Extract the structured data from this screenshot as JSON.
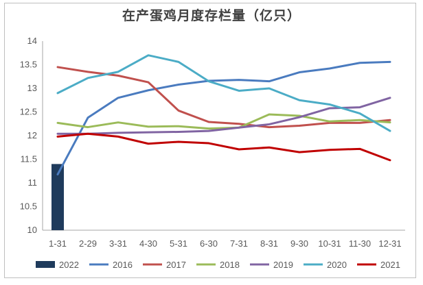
{
  "chart_data": {
    "type": "line",
    "title": "在产蛋鸡月度存栏量（亿只）",
    "categories": [
      "1-31",
      "2-29",
      "3-31",
      "4-30",
      "5-31",
      "6-30",
      "7-31",
      "8-31",
      "9-30",
      "10-31",
      "11-30",
      "12-31"
    ],
    "ylim": [
      10,
      14
    ],
    "yticks": [
      "10",
      "10.5",
      "11",
      "11.5",
      "12",
      "12.5",
      "13",
      "13.5",
      "14"
    ],
    "grid": false,
    "legend_position": "bottom",
    "bar_series": {
      "name": "2022",
      "color": "#1f3b5c",
      "values": [
        11.4,
        null,
        null,
        null,
        null,
        null,
        null,
        null,
        null,
        null,
        null,
        null
      ]
    },
    "series": [
      {
        "name": "2016",
        "color": "#4a7bbf",
        "values": [
          11.18,
          12.38,
          12.8,
          12.96,
          13.08,
          13.16,
          13.18,
          13.15,
          13.34,
          13.42,
          13.54,
          13.56
        ]
      },
      {
        "name": "2017",
        "color": "#c0504d",
        "values": [
          13.45,
          13.35,
          13.27,
          13.13,
          12.53,
          12.29,
          12.25,
          12.18,
          12.21,
          12.27,
          12.27,
          12.33
        ]
      },
      {
        "name": "2018",
        "color": "#9bbb59",
        "values": [
          12.27,
          12.18,
          12.28,
          12.19,
          12.2,
          12.15,
          12.17,
          12.45,
          12.42,
          12.3,
          12.33,
          12.28
        ]
      },
      {
        "name": "2019",
        "color": "#8064a2",
        "values": [
          12.04,
          12.04,
          12.06,
          12.07,
          12.08,
          12.1,
          12.17,
          12.24,
          12.39,
          12.58,
          12.6,
          12.8
        ]
      },
      {
        "name": "2020",
        "color": "#4bacc6",
        "values": [
          12.9,
          13.22,
          13.35,
          13.7,
          13.56,
          13.15,
          12.95,
          13.0,
          12.75,
          12.66,
          12.47,
          12.1
        ]
      },
      {
        "name": "2021",
        "color": "#c00000",
        "values": [
          11.98,
          12.04,
          11.98,
          11.83,
          11.87,
          11.84,
          11.71,
          11.75,
          11.65,
          11.7,
          11.72,
          11.48
        ]
      }
    ]
  }
}
